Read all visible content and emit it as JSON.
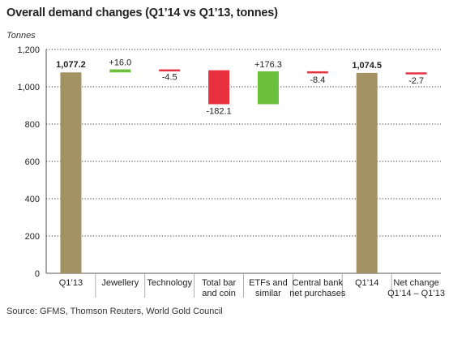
{
  "chart_data": {
    "type": "bar",
    "subtype": "waterfall",
    "title": "Overall demand changes (Q1’14 vs Q1’13, tonnes)",
    "ylabel": "Tonnes",
    "xlabel": "",
    "ylim": [
      0,
      1200
    ],
    "yticks": [
      0,
      200,
      400,
      600,
      800,
      "1,000",
      "1,200"
    ],
    "grid": "horizontal dotted",
    "categories": [
      [
        "Q1’13"
      ],
      [
        "Jewellery"
      ],
      [
        "Technology"
      ],
      [
        "Total bar",
        "and coin"
      ],
      [
        "ETFs and",
        "similar"
      ],
      [
        "Central bank",
        "net purchases"
      ],
      [
        "Q1’14"
      ],
      [
        "Net change",
        "Q1’14 – Q1’13"
      ]
    ],
    "values": [
      1077.2,
      16.0,
      -4.5,
      -182.1,
      176.3,
      -8.4,
      1074.5,
      -2.7
    ],
    "kinds": [
      "total",
      "increase",
      "decrease",
      "decrease",
      "increase",
      "decrease",
      "total",
      "decrease"
    ],
    "bar_ranges": [
      [
        0,
        1077.2
      ],
      [
        1077.2,
        1093.2
      ],
      [
        1093.2,
        1088.7
      ],
      [
        1088.7,
        906.6
      ],
      [
        906.6,
        1082.9
      ],
      [
        1082.9,
        1074.5
      ],
      [
        0,
        1074.5
      ],
      [
        1077.2,
        1074.5
      ]
    ],
    "data_labels": [
      "1,077.2",
      "+16.0",
      "-4.5",
      "-182.1",
      "+176.3",
      "-8.4",
      "1,074.5",
      "-2.7"
    ],
    "label_bold": [
      true,
      false,
      false,
      false,
      false,
      false,
      true,
      false
    ],
    "colors": {
      "total": "#a39363",
      "increase": "#6bbf3a",
      "decrease": "#e8313f",
      "grid": "#333333",
      "axis": "#555555"
    },
    "source": "Source: GFMS, Thomson Reuters, World Gold Council"
  }
}
